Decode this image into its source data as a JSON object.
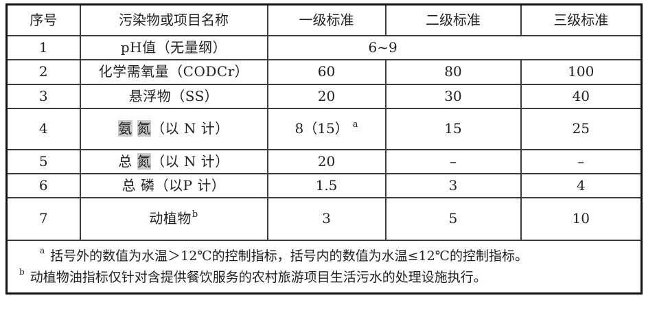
{
  "table": {
    "headers": [
      "序号",
      "污染物或项目名称",
      "一级标准",
      "二级标准",
      "三级标准"
    ],
    "rows": [
      {
        "num": "1",
        "name": [
          {
            "t": "pH值（无量纲）"
          }
        ],
        "values": [
          {
            "colspan": 3,
            "segs": [
              {
                "t": "6~9"
              }
            ]
          }
        ]
      },
      {
        "num": "2",
        "name": [
          {
            "t": "化学需氧量（CODCr）"
          }
        ],
        "values": [
          {
            "segs": [
              {
                "t": "60"
              }
            ]
          },
          {
            "segs": [
              {
                "t": "80"
              }
            ]
          },
          {
            "segs": [
              {
                "t": "100"
              }
            ]
          }
        ]
      },
      {
        "num": "3",
        "name": [
          {
            "t": "悬浮物（SS）"
          }
        ],
        "values": [
          {
            "segs": [
              {
                "t": "20"
              }
            ]
          },
          {
            "segs": [
              {
                "t": "30"
              }
            ]
          },
          {
            "segs": [
              {
                "t": "40"
              }
            ]
          }
        ]
      },
      {
        "num": "4",
        "name": [
          {
            "t": "氨",
            "hl": true
          },
          {
            "t": " "
          },
          {
            "t": "氮",
            "hl": true
          },
          {
            "t": "（以 N 计）"
          }
        ],
        "values": [
          {
            "segs": [
              {
                "t": "8（15）"
              },
              {
                "t": "a",
                "sup": true
              }
            ]
          },
          {
            "segs": [
              {
                "t": "15"
              }
            ]
          },
          {
            "segs": [
              {
                "t": "25"
              }
            ]
          }
        ]
      },
      {
        "num": "5",
        "name": [
          {
            "t": "总 "
          },
          {
            "t": "氮",
            "hl": true
          },
          {
            "t": "（以 N 计）"
          }
        ],
        "values": [
          {
            "segs": [
              {
                "t": "20"
              }
            ]
          },
          {
            "segs": [
              {
                "t": "–"
              }
            ]
          },
          {
            "segs": [
              {
                "t": "–"
              }
            ]
          }
        ]
      },
      {
        "num": "6",
        "name": [
          {
            "t": "总 磷（以P 计）"
          }
        ],
        "values": [
          {
            "segs": [
              {
                "t": "1.5"
              }
            ]
          },
          {
            "segs": [
              {
                "t": "3"
              }
            ]
          },
          {
            "segs": [
              {
                "t": "4"
              }
            ]
          }
        ]
      },
      {
        "num": "7",
        "name": [
          {
            "t": "动植物"
          },
          {
            "t": "b",
            "sup": true
          }
        ],
        "values": [
          {
            "segs": [
              {
                "t": "3"
              }
            ]
          },
          {
            "segs": [
              {
                "t": "5"
              }
            ]
          },
          {
            "segs": [
              {
                "t": "10"
              }
            ]
          }
        ]
      }
    ],
    "footnotes": [
      {
        "marker": "a",
        "text": "括号外的数值为水温＞12℃的控制指标，括号内的数值为水温≤12℃的控制指标。"
      },
      {
        "marker": "b",
        "text": "动植物油指标仅针对含提供餐饮服务的农村旅游项目生活污水的处理设施执行。"
      }
    ]
  },
  "colors": {
    "highlight": "#cbcbcb",
    "inner_border": "#3d3d3d",
    "outer_border": "#0e0e0e",
    "text": "#212121",
    "background": "#ffffff"
  }
}
